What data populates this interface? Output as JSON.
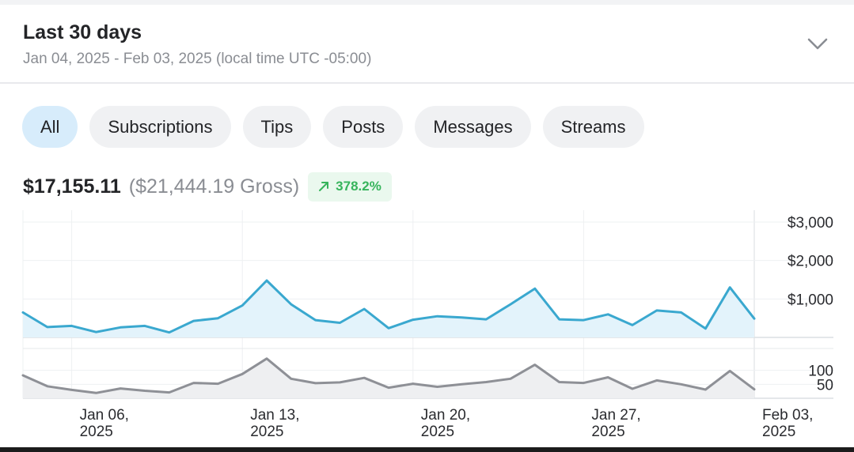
{
  "header": {
    "title": "Last 30 days",
    "date_range": "Jan 04, 2025 - Feb 03, 2025 (local time UTC -05:00)",
    "expand_icon": "chevron-down-icon"
  },
  "tabs": [
    {
      "label": "All",
      "active": true
    },
    {
      "label": "Subscriptions",
      "active": false
    },
    {
      "label": "Tips",
      "active": false
    },
    {
      "label": "Posts",
      "active": false
    },
    {
      "label": "Messages",
      "active": false
    },
    {
      "label": "Streams",
      "active": false
    }
  ],
  "summary": {
    "net": "$17,155.11",
    "gross": "($21,444.19 Gross)",
    "change": "378.2%",
    "change_icon": "arrow-up-right-icon",
    "change_color": "#37b45c"
  },
  "colors": {
    "earnings_line": "#3aa8cf",
    "earnings_fill": "#e3f3fb",
    "count_line": "#8e9096",
    "count_fill": "#eeeff1"
  },
  "chart_data": [
    {
      "type": "area",
      "series_name": "earnings",
      "x_labels": [
        [
          "Jan 06,",
          "2025"
        ],
        [
          "Jan 13,",
          "2025"
        ],
        [
          "Jan 20,",
          "2025"
        ],
        [
          "Jan 27,",
          "2025"
        ],
        [
          "Feb 03,",
          "2025"
        ]
      ],
      "x_label_days": [
        2,
        9,
        16,
        23,
        30
      ],
      "y_ticks": [
        {
          "value": 3000,
          "label": "$3,000"
        },
        {
          "value": 2000,
          "label": "$2,000"
        },
        {
          "value": 1000,
          "label": "$1,000"
        }
      ],
      "ylim": [
        0,
        3000
      ],
      "values": [
        650,
        270,
        300,
        140,
        260,
        300,
        130,
        430,
        500,
        830,
        1480,
        860,
        450,
        380,
        740,
        240,
        460,
        550,
        520,
        470,
        860,
        1270,
        470,
        450,
        600,
        320,
        700,
        650,
        230,
        1300,
        490
      ],
      "grid": true
    },
    {
      "type": "area",
      "series_name": "count",
      "y_ticks": [
        {
          "value": 100,
          "label": "100"
        },
        {
          "value": 50,
          "label": "50"
        }
      ],
      "ylim": [
        0,
        150
      ],
      "values": [
        82,
        43,
        30,
        19,
        35,
        27,
        21,
        55,
        52,
        87,
        142,
        70,
        54,
        57,
        73,
        38,
        52,
        41,
        50,
        58,
        70,
        120,
        58,
        55,
        75,
        34,
        64,
        50,
        31,
        98,
        32
      ],
      "grid": true
    }
  ]
}
